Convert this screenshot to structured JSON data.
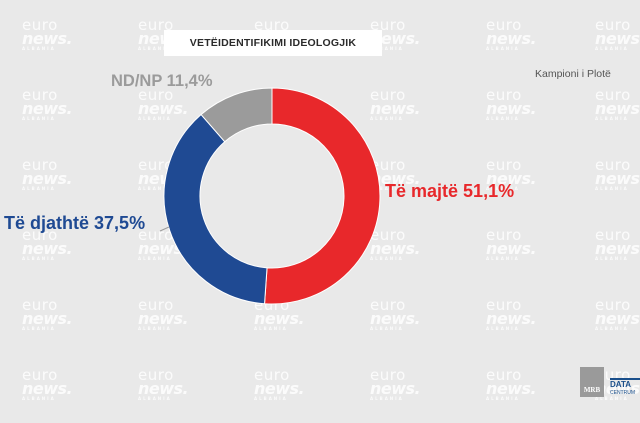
{
  "watermark": {
    "line1": "euro",
    "line2": "news.",
    "line3": "ALBANIA"
  },
  "title": "VETËIDENTIFIKIMI IDEOLOGJIK",
  "sample_note": "Kampioni i Plotë",
  "chart_data": {
    "type": "pie",
    "style": "donut",
    "title": "VETËIDENTIFIKIMI IDEOLOGJIK",
    "slices": [
      {
        "label": "Të majtë",
        "value": 51.1,
        "display": "51,1%",
        "color": "#e8282b"
      },
      {
        "label": "Të djathtë",
        "value": 37.5,
        "display": "37,5%",
        "color": "#1f4a93"
      },
      {
        "label": "ND/NP",
        "value": 11.4,
        "display": "11,4%",
        "color": "#9b9b9b"
      }
    ]
  },
  "logos": {
    "mrb_text": "MRB",
    "datacentrum_text": "DATA",
    "datacentrum_sub": "CENTRUM"
  }
}
